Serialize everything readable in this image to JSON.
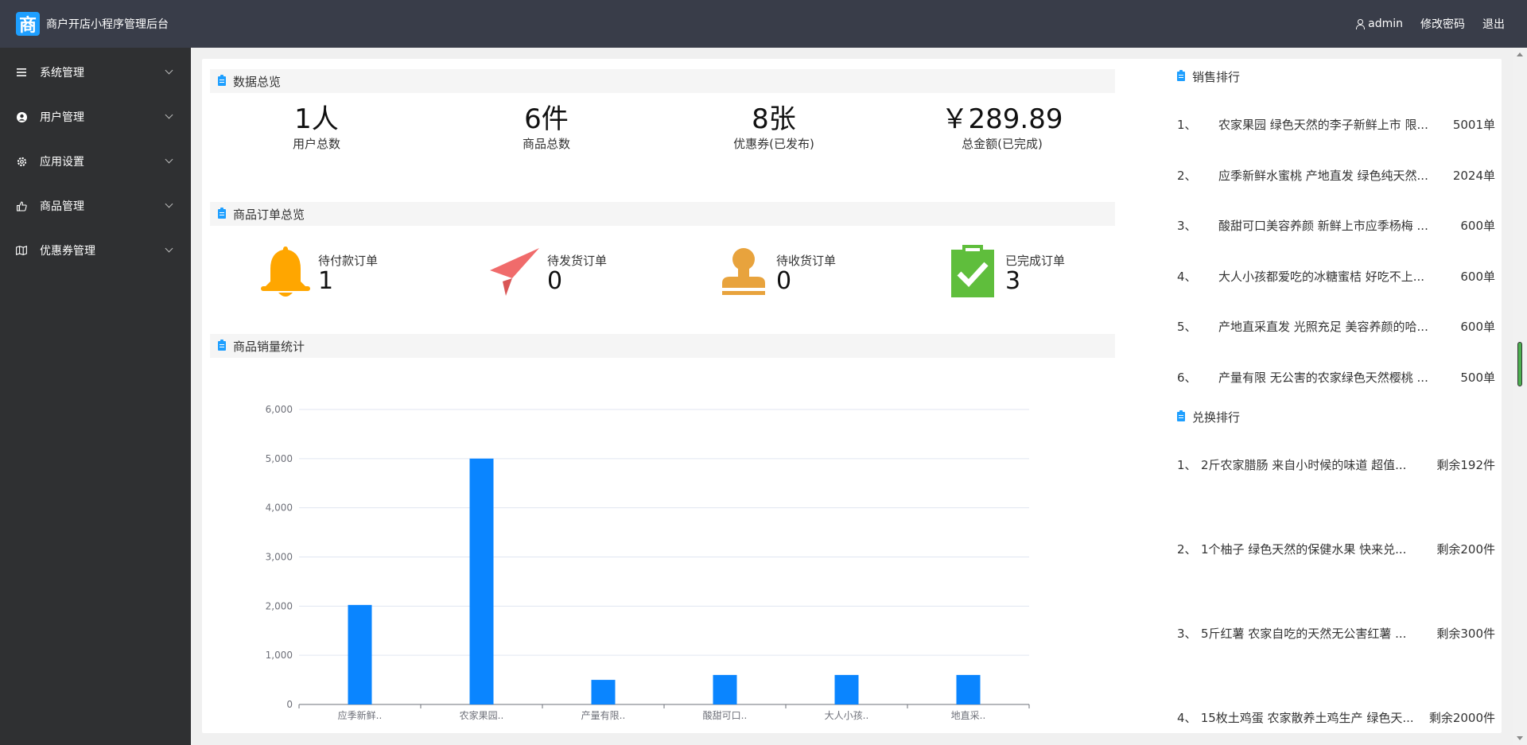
{
  "header": {
    "logo_char": "商",
    "title": "商户开店小程序管理后台",
    "user": "admin",
    "change_password": "修改密码",
    "logout": "退出"
  },
  "sidebar": {
    "items": [
      {
        "label": "系统管理",
        "icon": "menu-icon"
      },
      {
        "label": "用户管理",
        "icon": "user-circle-icon"
      },
      {
        "label": "应用设置",
        "icon": "gear-icon"
      },
      {
        "label": "商品管理",
        "icon": "thumbs-up-icon"
      },
      {
        "label": "优惠券管理",
        "icon": "map-icon"
      }
    ]
  },
  "overview": {
    "title": "数据总览",
    "stats": [
      {
        "value": "1人",
        "label": "用户总数"
      },
      {
        "value": "6件",
        "label": "商品总数"
      },
      {
        "value": "8张",
        "label": "优惠券(已发布)"
      },
      {
        "value": "￥289.89",
        "label": "总金额(已完成)"
      }
    ]
  },
  "orders": {
    "title": "商品订单总览",
    "items": [
      {
        "label": "待付款订单",
        "value": "1",
        "icon": "bell-icon",
        "color": "#ffa600"
      },
      {
        "label": "待发货订单",
        "value": "0",
        "icon": "paper-plane-icon",
        "color": "#f06b6b"
      },
      {
        "label": "待收货订单",
        "value": "0",
        "icon": "stamp-icon",
        "color": "#e8a33d"
      },
      {
        "label": "已完成订单",
        "value": "3",
        "icon": "clipboard-check-icon",
        "color": "#5fbe3c"
      }
    ]
  },
  "sales_chart": {
    "title": "商品销量统计"
  },
  "chart_data": {
    "type": "bar",
    "categories": [
      "应季新鲜..",
      "农家果园..",
      "产量有限..",
      "酸甜可口..",
      "大人小孩..",
      "地直采.."
    ],
    "values": [
      2024,
      5001,
      500,
      600,
      600,
      600
    ],
    "ylim": [
      0,
      6000
    ],
    "yticks": [
      "0",
      "1,000",
      "2,000",
      "3,000",
      "4,000",
      "5,000",
      "6,000"
    ],
    "color": "#0a85ff",
    "grid": true
  },
  "sales_rank": {
    "title": "销售排行",
    "rows": [
      {
        "num": "1、",
        "name": "农家果园 绿色天然的李子新鲜上市 限...",
        "count": "5001单"
      },
      {
        "num": "2、",
        "name": "应季新鲜水蜜桃 产地直发 绿色纯天然...",
        "count": "2024单"
      },
      {
        "num": "3、",
        "name": "酸甜可口美容养颜 新鲜上市应季杨梅 ...",
        "count": "600单"
      },
      {
        "num": "4、",
        "name": "大人小孩都爱吃的冰糖蜜桔 好吃不上...",
        "count": "600单"
      },
      {
        "num": "5、",
        "name": "产地直采直发 光照充足 美容养颜的哈...",
        "count": "600单"
      },
      {
        "num": "6、",
        "name": "产量有限 无公害的农家绿色天然樱桃 ...",
        "count": "500单"
      }
    ]
  },
  "exchange_rank": {
    "title": "兑换排行",
    "rows": [
      {
        "num": "1、",
        "name": "2斤农家腊肠 来自小时候的味道 超值...",
        "count": "剩余192件"
      },
      {
        "num": "2、",
        "name": "1个柚子 绿色天然的保健水果 快来兑...",
        "count": "剩余200件"
      },
      {
        "num": "3、",
        "name": "5斤红薯 农家自吃的天然无公害红薯 ...",
        "count": "剩余300件"
      },
      {
        "num": "4、",
        "name": "15枚土鸡蛋 农家散养土鸡生产 绿色天...",
        "count": "剩余2000件"
      }
    ]
  }
}
